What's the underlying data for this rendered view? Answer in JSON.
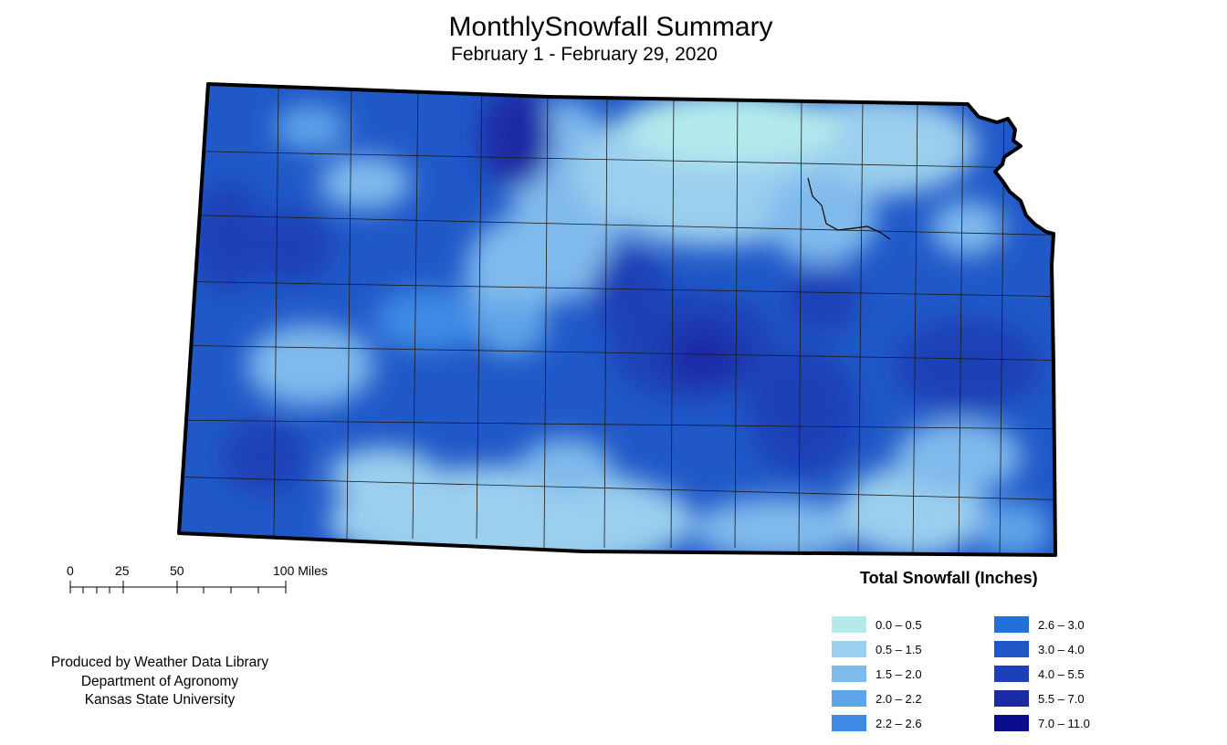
{
  "title": "MonthlySnowfall Summary",
  "subtitle": "February 1 - February 29, 2020",
  "scale_bar": {
    "labels": [
      "0",
      "25",
      "50",
      "100 Miles"
    ]
  },
  "credits": [
    "Produced by Weather Data Library",
    "Department of Agronomy",
    "Kansas State University"
  ],
  "legend": {
    "title": "Total Snowfall (Inches)",
    "items": [
      {
        "label": "0.0 – 0.5",
        "color": "#B4EAEC"
      },
      {
        "label": "0.5 – 1.5",
        "color": "#9BCFEE"
      },
      {
        "label": "1.5 – 2.0",
        "color": "#80BAEC"
      },
      {
        "label": "2.0 – 2.2",
        "color": "#5DA4E8"
      },
      {
        "label": "2.2 – 2.6",
        "color": "#3C8AE4"
      },
      {
        "label": "2.6 – 3.0",
        "color": "#2470DA"
      },
      {
        "label": "3.0 – 4.0",
        "color": "#2058C8"
      },
      {
        "label": "4.0 – 5.5",
        "color": "#1E40B6"
      },
      {
        "label": "5.5 – 7.0",
        "color": "#1A2AA4"
      },
      {
        "label": "7.0 – 11.0",
        "color": "#0A0E8C"
      }
    ]
  }
}
